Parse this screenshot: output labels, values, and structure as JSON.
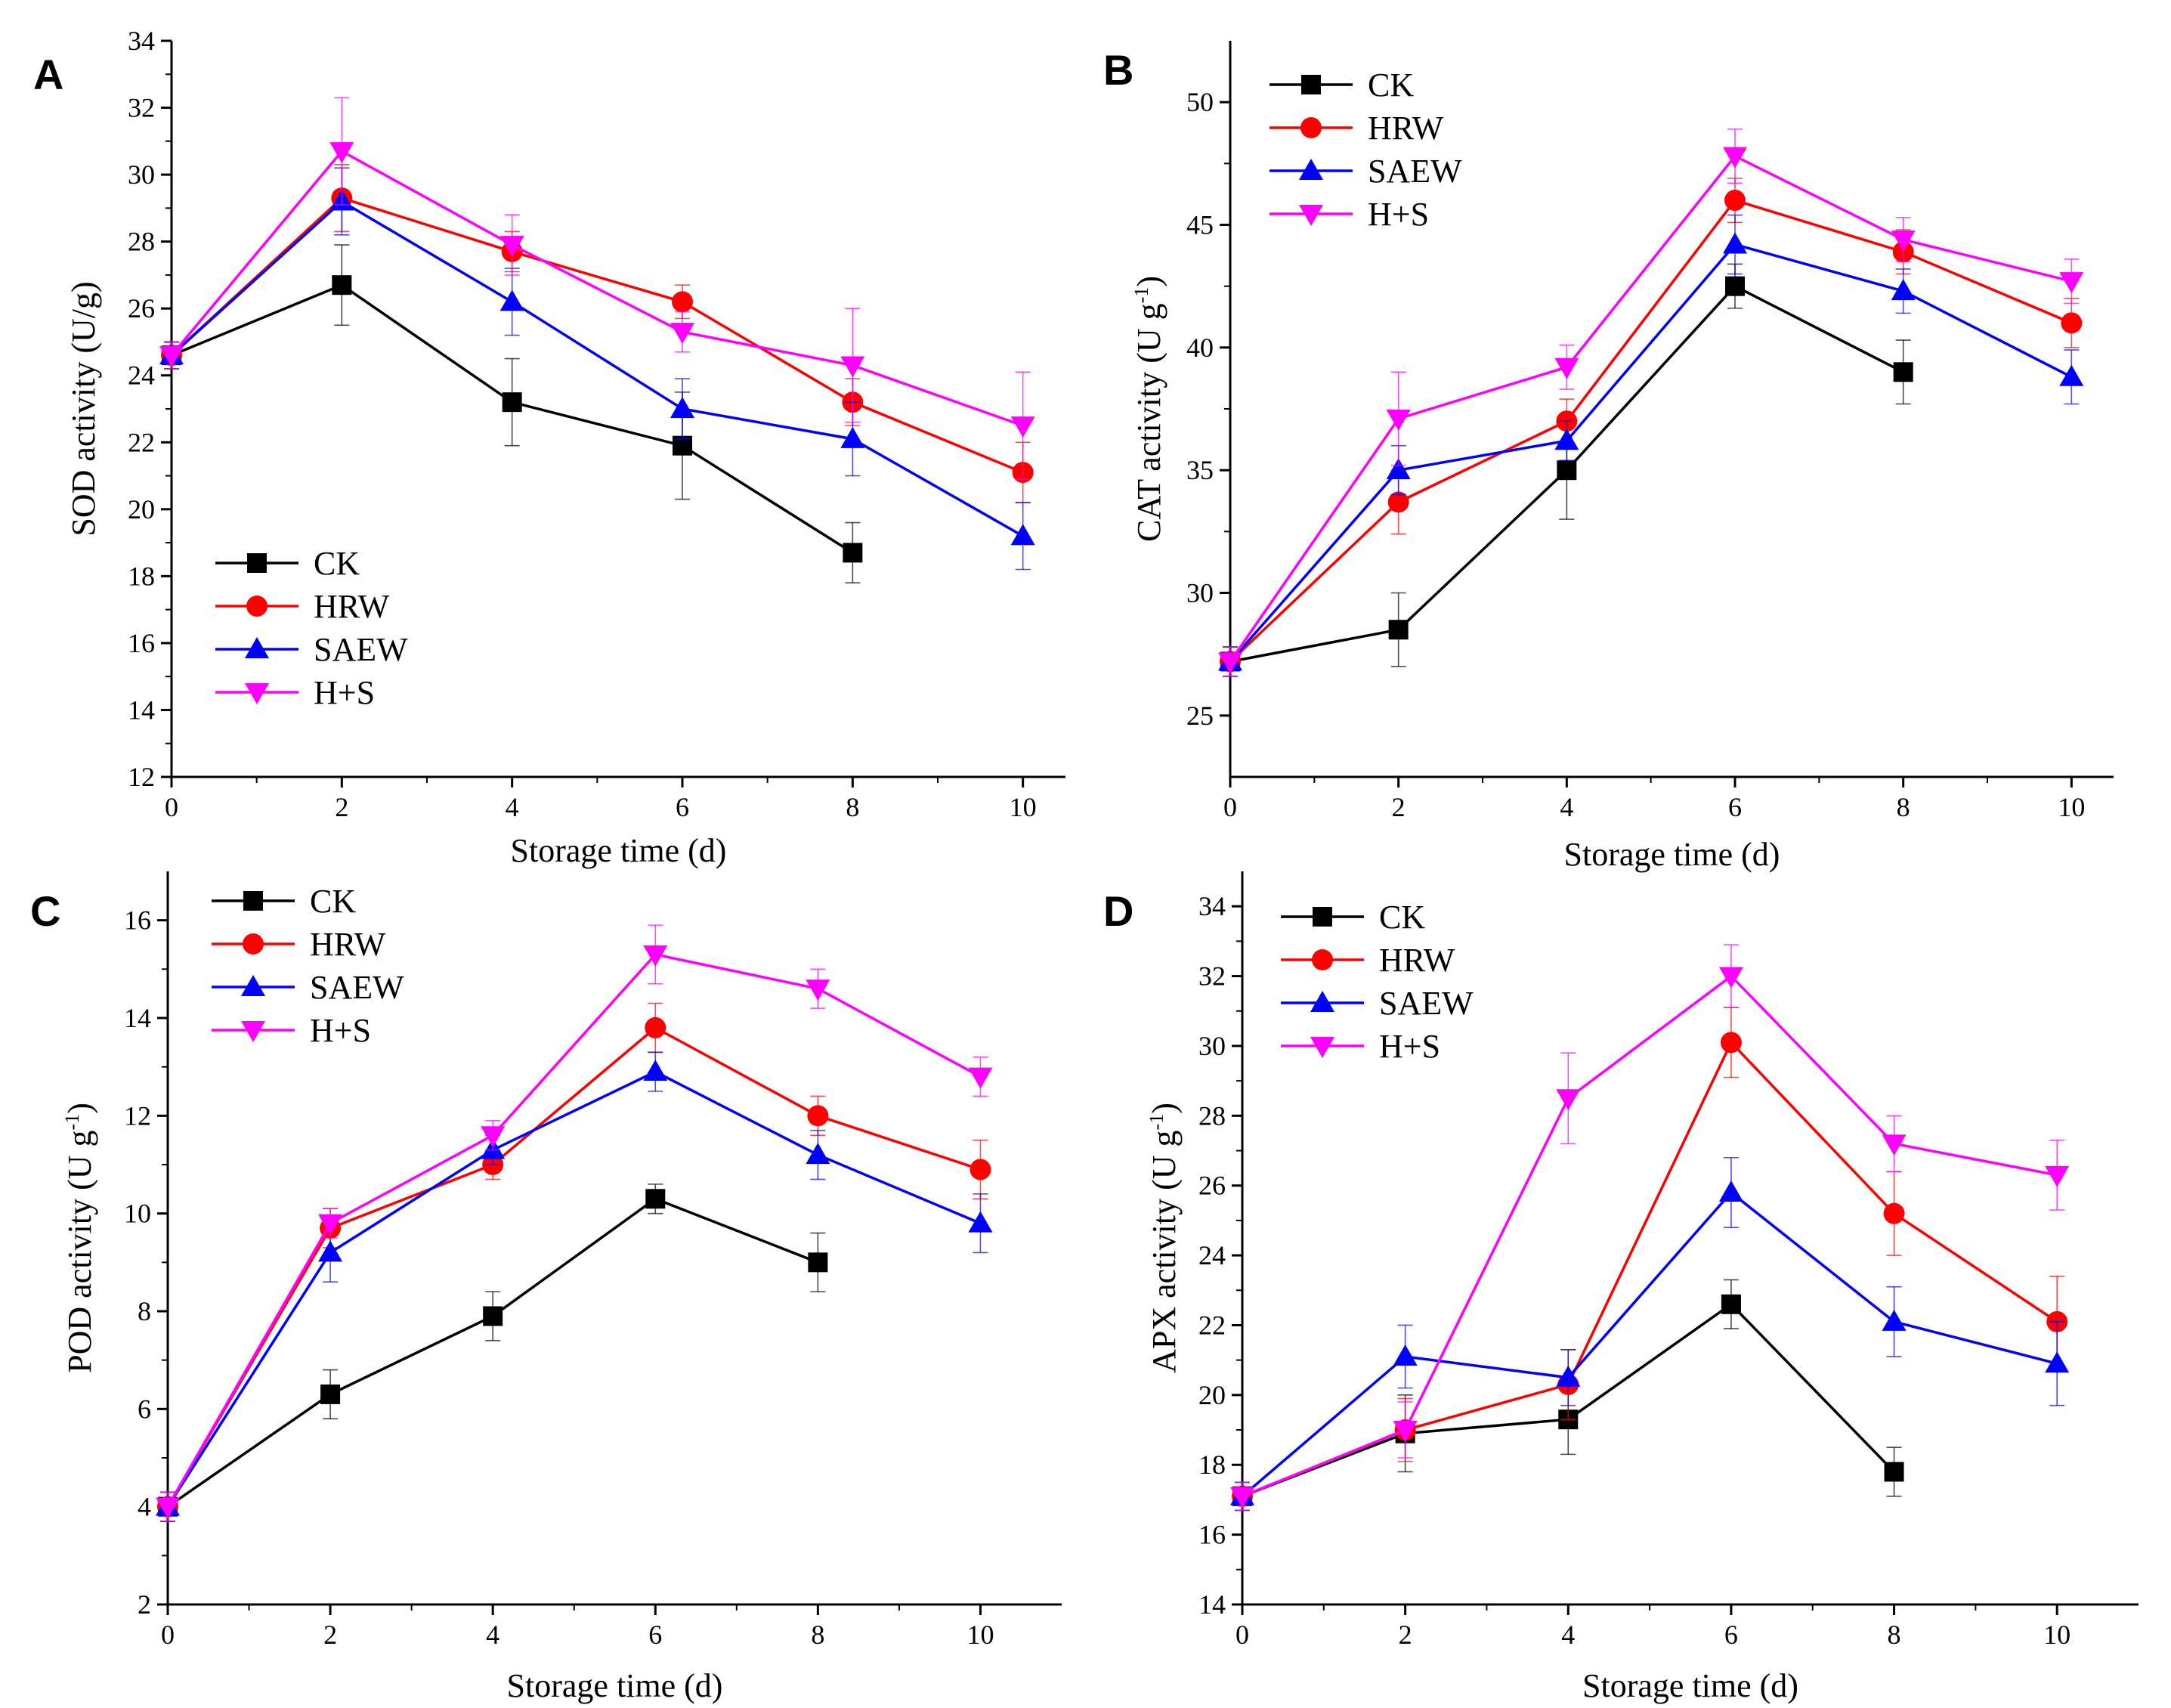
{
  "figure": {
    "panels": [
      "A",
      "B",
      "C",
      "D"
    ]
  },
  "series_styles": [
    {
      "name": "CK",
      "color": "#000000",
      "marker": "square"
    },
    {
      "name": "HRW",
      "color": "#ff0000",
      "marker": "circle"
    },
    {
      "name": "SAEW",
      "color": "#0000ff",
      "marker": "triangle-up"
    },
    {
      "name": "H+S",
      "color": "#ff00ff",
      "marker": "triangle-down"
    }
  ],
  "chart_data": [
    {
      "type": "line",
      "panel": "A",
      "xlabel": "Storage time (d)",
      "ylabel": "SOD activity (U/g)",
      "xlim": [
        0,
        10.5
      ],
      "ylim": [
        12,
        34
      ],
      "xticks": [
        0,
        2,
        4,
        6,
        8,
        10
      ],
      "yticks": [
        12,
        14,
        16,
        18,
        20,
        22,
        24,
        26,
        28,
        30,
        32,
        34
      ],
      "legend": "bottom-left",
      "x": [
        0,
        2,
        4,
        6,
        8,
        10
      ],
      "series": [
        {
          "name": "CK",
          "values": [
            24.6,
            26.7,
            23.2,
            21.9,
            18.7,
            null
          ],
          "errors": [
            0.4,
            1.2,
            1.3,
            1.6,
            0.9,
            null
          ]
        },
        {
          "name": "HRW",
          "values": [
            24.6,
            29.3,
            27.7,
            26.2,
            23.2,
            21.1
          ],
          "errors": [
            0.4,
            1.0,
            0.6,
            0.5,
            0.7,
            0.9
          ]
        },
        {
          "name": "SAEW",
          "values": [
            24.6,
            29.2,
            26.2,
            23.0,
            22.1,
            19.2
          ],
          "errors": [
            0.4,
            1.0,
            1.0,
            0.9,
            1.1,
            1.0
          ]
        },
        {
          "name": "H+S",
          "values": [
            24.6,
            30.7,
            27.9,
            25.3,
            24.3,
            22.5
          ],
          "errors": [
            0.4,
            1.6,
            0.9,
            0.6,
            1.7,
            1.6
          ]
        }
      ]
    },
    {
      "type": "line",
      "panel": "B",
      "xlabel": "Storage time (d)",
      "ylabel": "CAT activity (U g",
      "ylabel_sup": "-1",
      "ylabel_end": ")",
      "xlim": [
        0,
        10.5
      ],
      "ylim": [
        22.5,
        52.5
      ],
      "xticks": [
        0,
        2,
        4,
        6,
        8,
        10
      ],
      "yticks": [
        25,
        30,
        35,
        40,
        45,
        50
      ],
      "legend": "top-left",
      "x": [
        0,
        2,
        4,
        6,
        8,
        10
      ],
      "series": [
        {
          "name": "CK",
          "values": [
            27.2,
            28.5,
            35.0,
            42.5,
            39.0,
            null
          ],
          "errors": [
            0.6,
            1.5,
            2.0,
            0.9,
            1.3,
            null
          ]
        },
        {
          "name": "HRW",
          "values": [
            27.2,
            33.7,
            37.0,
            46.0,
            43.9,
            41.0
          ],
          "errors": [
            0.6,
            1.3,
            0.9,
            0.9,
            0.9,
            1.0
          ]
        },
        {
          "name": "SAEW",
          "values": [
            27.2,
            35.0,
            36.2,
            44.2,
            42.3,
            38.8
          ],
          "errors": [
            0.6,
            1.0,
            0.8,
            1.2,
            0.9,
            1.1
          ]
        },
        {
          "name": "H+S",
          "values": [
            27.2,
            37.1,
            39.2,
            47.8,
            44.4,
            42.7
          ],
          "errors": [
            0.6,
            1.9,
            0.9,
            1.1,
            0.9,
            0.9
          ]
        }
      ]
    },
    {
      "type": "line",
      "panel": "C",
      "xlabel": "Storage time (d)",
      "ylabel": "POD activity (U g",
      "ylabel_sup": "-1",
      "ylabel_end": ")",
      "xlim": [
        0,
        11
      ],
      "ylim": [
        2,
        17
      ],
      "xticks": [
        0,
        2,
        4,
        6,
        8,
        10
      ],
      "yticks": [
        2,
        4,
        6,
        8,
        10,
        12,
        14,
        16
      ],
      "legend": "top-left",
      "x": [
        0,
        2,
        4,
        6,
        8,
        10
      ],
      "series": [
        {
          "name": "CK",
          "values": [
            4.0,
            6.3,
            7.9,
            10.3,
            9.0,
            null
          ],
          "errors": [
            0.3,
            0.5,
            0.5,
            0.3,
            0.6,
            null
          ]
        },
        {
          "name": "HRW",
          "values": [
            4.0,
            9.7,
            11.0,
            13.8,
            12.0,
            10.9
          ],
          "errors": [
            0.3,
            0.4,
            0.3,
            0.5,
            0.4,
            0.6
          ]
        },
        {
          "name": "SAEW",
          "values": [
            4.0,
            9.2,
            11.3,
            12.9,
            11.2,
            9.8
          ],
          "errors": [
            0.3,
            0.6,
            0.3,
            0.4,
            0.5,
            0.6
          ]
        },
        {
          "name": "H+S",
          "values": [
            4.0,
            9.8,
            11.6,
            15.3,
            14.6,
            12.8
          ],
          "errors": [
            0.3,
            0.3,
            0.3,
            0.6,
            0.4,
            0.4
          ]
        }
      ]
    },
    {
      "type": "line",
      "panel": "D",
      "xlabel": "Storage time (d)",
      "ylabel": "APX activity (U g",
      "ylabel_sup": "-1",
      "ylabel_end": ")",
      "xlim": [
        0,
        11
      ],
      "ylim": [
        14,
        35
      ],
      "xticks": [
        0,
        2,
        4,
        6,
        8,
        10
      ],
      "yticks": [
        14,
        16,
        18,
        20,
        22,
        24,
        26,
        28,
        30,
        32,
        34
      ],
      "legend": "top-left",
      "x": [
        0,
        2,
        4,
        6,
        8,
        10
      ],
      "series": [
        {
          "name": "CK",
          "values": [
            17.1,
            18.9,
            19.3,
            22.6,
            17.8,
            null
          ],
          "errors": [
            0.4,
            1.1,
            1.0,
            0.7,
            0.7,
            null
          ]
        },
        {
          "name": "HRW",
          "values": [
            17.1,
            19.0,
            20.3,
            30.1,
            25.2,
            22.1
          ],
          "errors": [
            0.4,
            0.9,
            1.0,
            1.0,
            1.2,
            1.3
          ]
        },
        {
          "name": "SAEW",
          "values": [
            17.1,
            21.1,
            20.5,
            25.8,
            22.1,
            20.9
          ],
          "errors": [
            0.4,
            0.9,
            0.8,
            1.0,
            1.0,
            1.2
          ]
        },
        {
          "name": "H+S",
          "values": [
            17.1,
            19.0,
            28.5,
            32.0,
            27.2,
            26.3
          ],
          "errors": [
            0.4,
            0.8,
            1.3,
            0.9,
            0.8,
            1.0
          ]
        }
      ]
    }
  ]
}
